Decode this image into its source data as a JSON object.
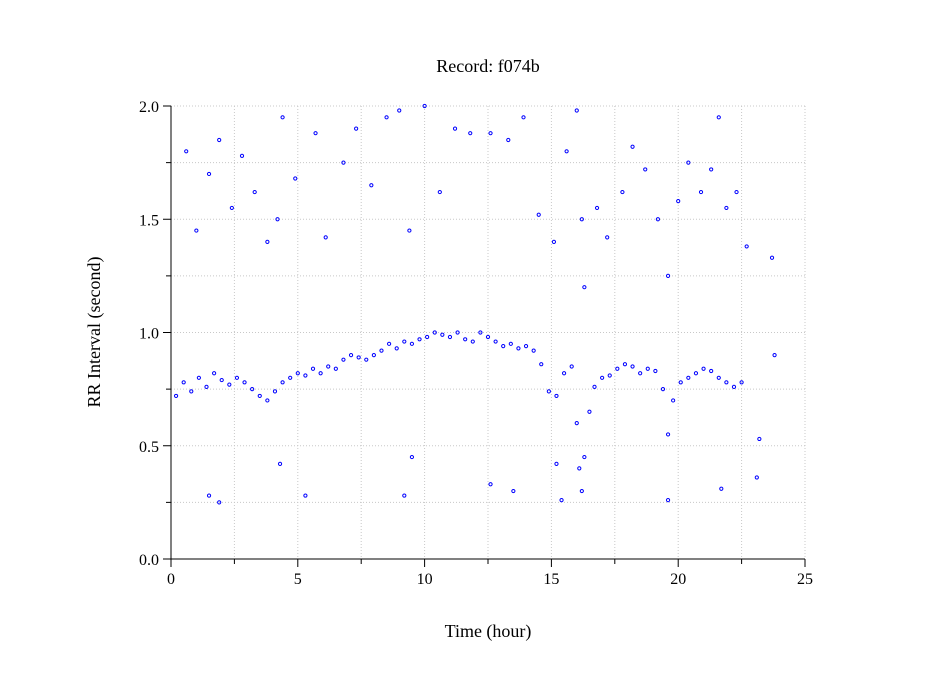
{
  "chart_data": {
    "type": "scatter",
    "title": "Record:  f074b",
    "xlabel": "Time (hour)",
    "ylabel": "RR Interval (second)",
    "xlim": [
      0,
      25
    ],
    "ylim": [
      0,
      2.0
    ],
    "x_ticks": [
      "0",
      "5",
      "10",
      "15",
      "20",
      "25"
    ],
    "y_ticks": [
      "0.0",
      "0.5",
      "1.0",
      "1.5",
      "2.0"
    ],
    "grid": true,
    "marker": "circle",
    "point_color": "#0000ff",
    "series": [
      {
        "values": [
          {
            "x": 0.2,
            "y": 0.72
          },
          {
            "x": 0.5,
            "y": 0.78
          },
          {
            "x": 0.8,
            "y": 0.74
          },
          {
            "x": 1.1,
            "y": 0.8
          },
          {
            "x": 1.4,
            "y": 0.76
          },
          {
            "x": 1.7,
            "y": 0.82
          },
          {
            "x": 2.0,
            "y": 0.79
          },
          {
            "x": 2.3,
            "y": 0.77
          },
          {
            "x": 2.6,
            "y": 0.8
          },
          {
            "x": 2.9,
            "y": 0.78
          },
          {
            "x": 3.2,
            "y": 0.75
          },
          {
            "x": 3.5,
            "y": 0.72
          },
          {
            "x": 3.8,
            "y": 0.7
          },
          {
            "x": 4.1,
            "y": 0.74
          },
          {
            "x": 4.4,
            "y": 0.78
          },
          {
            "x": 4.7,
            "y": 0.8
          },
          {
            "x": 5.0,
            "y": 0.82
          },
          {
            "x": 5.3,
            "y": 0.81
          },
          {
            "x": 5.6,
            "y": 0.84
          },
          {
            "x": 5.9,
            "y": 0.82
          },
          {
            "x": 6.2,
            "y": 0.85
          },
          {
            "x": 6.5,
            "y": 0.84
          },
          {
            "x": 6.8,
            "y": 0.88
          },
          {
            "x": 7.1,
            "y": 0.9
          },
          {
            "x": 7.4,
            "y": 0.89
          },
          {
            "x": 7.7,
            "y": 0.88
          },
          {
            "x": 8.0,
            "y": 0.9
          },
          {
            "x": 8.3,
            "y": 0.92
          },
          {
            "x": 8.6,
            "y": 0.95
          },
          {
            "x": 8.9,
            "y": 0.93
          },
          {
            "x": 9.2,
            "y": 0.96
          },
          {
            "x": 9.5,
            "y": 0.95
          },
          {
            "x": 9.8,
            "y": 0.97
          },
          {
            "x": 10.1,
            "y": 0.98
          },
          {
            "x": 10.4,
            "y": 1.0
          },
          {
            "x": 10.7,
            "y": 0.99
          },
          {
            "x": 11.0,
            "y": 0.98
          },
          {
            "x": 11.3,
            "y": 1.0
          },
          {
            "x": 11.6,
            "y": 0.97
          },
          {
            "x": 11.9,
            "y": 0.96
          },
          {
            "x": 12.2,
            "y": 1.0
          },
          {
            "x": 12.5,
            "y": 0.98
          },
          {
            "x": 12.8,
            "y": 0.96
          },
          {
            "x": 13.1,
            "y": 0.94
          },
          {
            "x": 13.4,
            "y": 0.95
          },
          {
            "x": 13.7,
            "y": 0.93
          },
          {
            "x": 14.0,
            "y": 0.94
          },
          {
            "x": 14.3,
            "y": 0.92
          },
          {
            "x": 14.6,
            "y": 0.86
          },
          {
            "x": 14.9,
            "y": 0.74
          },
          {
            "x": 15.2,
            "y": 0.72
          },
          {
            "x": 15.5,
            "y": 0.82
          },
          {
            "x": 15.8,
            "y": 0.85
          },
          {
            "x": 16.0,
            "y": 0.6
          },
          {
            "x": 16.1,
            "y": 0.4
          },
          {
            "x": 16.2,
            "y": 0.3
          },
          {
            "x": 16.3,
            "y": 0.45
          },
          {
            "x": 16.5,
            "y": 0.65
          },
          {
            "x": 16.7,
            "y": 0.76
          },
          {
            "x": 17.0,
            "y": 0.8
          },
          {
            "x": 17.3,
            "y": 0.81
          },
          {
            "x": 17.6,
            "y": 0.84
          },
          {
            "x": 17.9,
            "y": 0.86
          },
          {
            "x": 18.2,
            "y": 0.85
          },
          {
            "x": 18.5,
            "y": 0.82
          },
          {
            "x": 18.8,
            "y": 0.84
          },
          {
            "x": 19.1,
            "y": 0.83
          },
          {
            "x": 19.4,
            "y": 0.75
          },
          {
            "x": 19.6,
            "y": 0.55
          },
          {
            "x": 19.8,
            "y": 0.7
          },
          {
            "x": 20.1,
            "y": 0.78
          },
          {
            "x": 20.4,
            "y": 0.8
          },
          {
            "x": 20.7,
            "y": 0.82
          },
          {
            "x": 21.0,
            "y": 0.84
          },
          {
            "x": 21.3,
            "y": 0.83
          },
          {
            "x": 21.6,
            "y": 0.8
          },
          {
            "x": 21.9,
            "y": 0.78
          },
          {
            "x": 22.2,
            "y": 0.76
          },
          {
            "x": 22.5,
            "y": 0.78
          },
          {
            "x": 0.6,
            "y": 1.8
          },
          {
            "x": 1.0,
            "y": 1.45
          },
          {
            "x": 1.5,
            "y": 1.7
          },
          {
            "x": 1.9,
            "y": 1.85
          },
          {
            "x": 2.4,
            "y": 1.55
          },
          {
            "x": 2.8,
            "y": 1.78
          },
          {
            "x": 3.3,
            "y": 1.62
          },
          {
            "x": 3.8,
            "y": 1.4
          },
          {
            "x": 4.2,
            "y": 1.5
          },
          {
            "x": 4.4,
            "y": 1.95
          },
          {
            "x": 4.9,
            "y": 1.68
          },
          {
            "x": 5.7,
            "y": 1.88
          },
          {
            "x": 6.1,
            "y": 1.42
          },
          {
            "x": 6.8,
            "y": 1.75
          },
          {
            "x": 7.3,
            "y": 1.9
          },
          {
            "x": 7.9,
            "y": 1.65
          },
          {
            "x": 8.5,
            "y": 1.95
          },
          {
            "x": 9.0,
            "y": 1.98
          },
          {
            "x": 9.4,
            "y": 1.45
          },
          {
            "x": 10.0,
            "y": 2.0
          },
          {
            "x": 10.6,
            "y": 1.62
          },
          {
            "x": 11.2,
            "y": 1.9
          },
          {
            "x": 11.8,
            "y": 1.88
          },
          {
            "x": 12.6,
            "y": 1.88
          },
          {
            "x": 13.3,
            "y": 1.85
          },
          {
            "x": 13.9,
            "y": 1.95
          },
          {
            "x": 14.5,
            "y": 1.52
          },
          {
            "x": 15.1,
            "y": 1.4
          },
          {
            "x": 15.6,
            "y": 1.8
          },
          {
            "x": 16.0,
            "y": 1.98
          },
          {
            "x": 16.2,
            "y": 1.5
          },
          {
            "x": 16.3,
            "y": 1.2
          },
          {
            "x": 16.8,
            "y": 1.55
          },
          {
            "x": 17.2,
            "y": 1.42
          },
          {
            "x": 17.8,
            "y": 1.62
          },
          {
            "x": 18.2,
            "y": 1.82
          },
          {
            "x": 18.7,
            "y": 1.72
          },
          {
            "x": 19.2,
            "y": 1.5
          },
          {
            "x": 19.6,
            "y": 1.25
          },
          {
            "x": 20.0,
            "y": 1.58
          },
          {
            "x": 20.4,
            "y": 1.75
          },
          {
            "x": 20.9,
            "y": 1.62
          },
          {
            "x": 21.3,
            "y": 1.72
          },
          {
            "x": 21.6,
            "y": 1.95
          },
          {
            "x": 21.9,
            "y": 1.55
          },
          {
            "x": 22.3,
            "y": 1.62
          },
          {
            "x": 22.7,
            "y": 1.38
          },
          {
            "x": 23.7,
            "y": 1.33
          },
          {
            "x": 23.8,
            "y": 0.9
          },
          {
            "x": 1.5,
            "y": 0.28
          },
          {
            "x": 1.9,
            "y": 0.25
          },
          {
            "x": 4.3,
            "y": 0.42
          },
          {
            "x": 5.3,
            "y": 0.28
          },
          {
            "x": 9.2,
            "y": 0.28
          },
          {
            "x": 9.5,
            "y": 0.45
          },
          {
            "x": 12.6,
            "y": 0.33
          },
          {
            "x": 13.5,
            "y": 0.3
          },
          {
            "x": 15.2,
            "y": 0.42
          },
          {
            "x": 15.4,
            "y": 0.26
          },
          {
            "x": 19.6,
            "y": 0.26
          },
          {
            "x": 21.7,
            "y": 0.31
          },
          {
            "x": 23.1,
            "y": 0.36
          },
          {
            "x": 23.2,
            "y": 0.53
          }
        ]
      }
    ]
  }
}
